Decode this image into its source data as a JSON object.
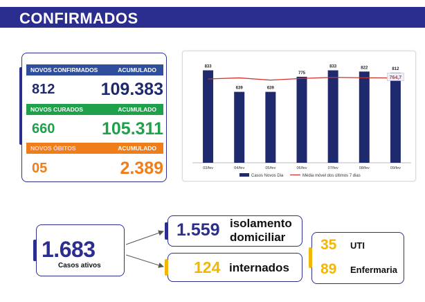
{
  "header": {
    "title": "CONFIRMADOS"
  },
  "stats": {
    "confirmed": {
      "label": "NOVOS CONFIRMADOS",
      "acc_label": "ACUMULADO",
      "new": "812",
      "total": "109.383",
      "color": "#2f4f9c"
    },
    "recovered": {
      "label": "NOVOS CURADOS",
      "acc_label": "ACUMULADO",
      "new": "660",
      "total": "105.311",
      "color": "#1ea14a"
    },
    "deaths": {
      "label": "NOVOS ÓBITOS",
      "acc_label": "ACUMULADO",
      "new": "05",
      "total": "2.389",
      "color": "#ef7d1a"
    }
  },
  "chart_data": {
    "type": "bar",
    "categories": [
      "03/fev",
      "04/fev",
      "05/fev",
      "06/fev",
      "07/fev",
      "08/fev",
      "09/fev"
    ],
    "series": [
      {
        "name": "Casos Novos Dia",
        "type": "bar",
        "values": [
          833,
          639,
          639,
          775,
          833,
          822,
          812
        ],
        "color": "#1f2a6e"
      },
      {
        "name": "Média móvel dos últimos 7 dias",
        "type": "line",
        "values": [
          755,
          765,
          745,
          760,
          770,
          766,
          764.7
        ],
        "color": "#d0312d"
      }
    ],
    "annotation": "764,7",
    "ylim": [
      0,
      880
    ],
    "legend": "bottom"
  },
  "active": {
    "value": "1.683",
    "label": "Casos ativos"
  },
  "isolation": {
    "value": "1.559",
    "label_line1": "isolamento",
    "label_line2": "domiciliar"
  },
  "hospitalized": {
    "value": "124",
    "label": "internados"
  },
  "hospital": {
    "uti_value": "35",
    "uti_label": "UTI",
    "ward_value": "89",
    "ward_label": "Enfermaria"
  }
}
